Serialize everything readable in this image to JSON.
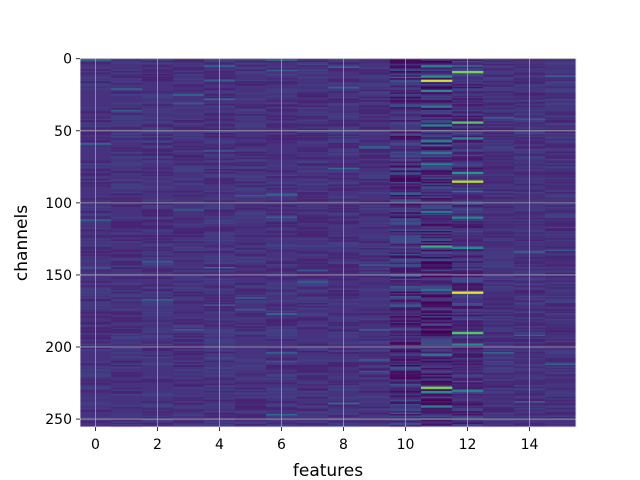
{
  "chart_data": {
    "type": "heatmap",
    "title": "",
    "xlabel": "features",
    "ylabel": "channels",
    "n_features": 16,
    "n_channels": 256,
    "xlim": [
      -0.5,
      15.5
    ],
    "ylim": [
      255.5,
      -0.5
    ],
    "x_ticks": [
      0,
      2,
      4,
      6,
      8,
      10,
      12,
      14
    ],
    "y_ticks": [
      0,
      50,
      100,
      150,
      200,
      250
    ],
    "grid": true,
    "colormap": "viridis",
    "background_color": "#46327e",
    "grid_color": "#b0b0b0",
    "bright_cells": [
      {
        "feature": 11,
        "channel": 5,
        "value": 0.55
      },
      {
        "feature": 11,
        "channel": 12,
        "value": 0.62
      },
      {
        "feature": 11,
        "channel": 15,
        "value": 0.95
      },
      {
        "feature": 11,
        "channel": 22,
        "value": 0.6
      },
      {
        "feature": 11,
        "channel": 33,
        "value": 0.5
      },
      {
        "feature": 11,
        "channel": 46,
        "value": 0.55
      },
      {
        "feature": 11,
        "channel": 57,
        "value": 0.55
      },
      {
        "feature": 11,
        "channel": 65,
        "value": 0.5
      },
      {
        "feature": 11,
        "channel": 73,
        "value": 0.55
      },
      {
        "feature": 11,
        "channel": 106,
        "value": 0.5
      },
      {
        "feature": 11,
        "channel": 130,
        "value": 0.72
      },
      {
        "feature": 11,
        "channel": 160,
        "value": 0.45
      },
      {
        "feature": 11,
        "channel": 205,
        "value": 0.5
      },
      {
        "feature": 11,
        "channel": 228,
        "value": 0.85
      },
      {
        "feature": 11,
        "channel": 231,
        "value": 0.6
      },
      {
        "feature": 11,
        "channel": 241,
        "value": 0.55
      },
      {
        "feature": 12,
        "channel": 9,
        "value": 0.85
      },
      {
        "feature": 12,
        "channel": 44,
        "value": 0.8
      },
      {
        "feature": 12,
        "channel": 55,
        "value": 0.55
      },
      {
        "feature": 12,
        "channel": 79,
        "value": 0.65
      },
      {
        "feature": 12,
        "channel": 85,
        "value": 0.92
      },
      {
        "feature": 12,
        "channel": 110,
        "value": 0.55
      },
      {
        "feature": 12,
        "channel": 131,
        "value": 0.6
      },
      {
        "feature": 12,
        "channel": 162,
        "value": 0.98
      },
      {
        "feature": 12,
        "channel": 190,
        "value": 0.8
      },
      {
        "feature": 12,
        "channel": 198,
        "value": 0.6
      },
      {
        "feature": 12,
        "channel": 230,
        "value": 0.55
      },
      {
        "feature": 6,
        "channel": 94,
        "value": 0.4
      },
      {
        "feature": 2,
        "channel": 167,
        "value": 0.35
      },
      {
        "feature": 10,
        "channel": 171,
        "value": 0.35
      }
    ]
  }
}
